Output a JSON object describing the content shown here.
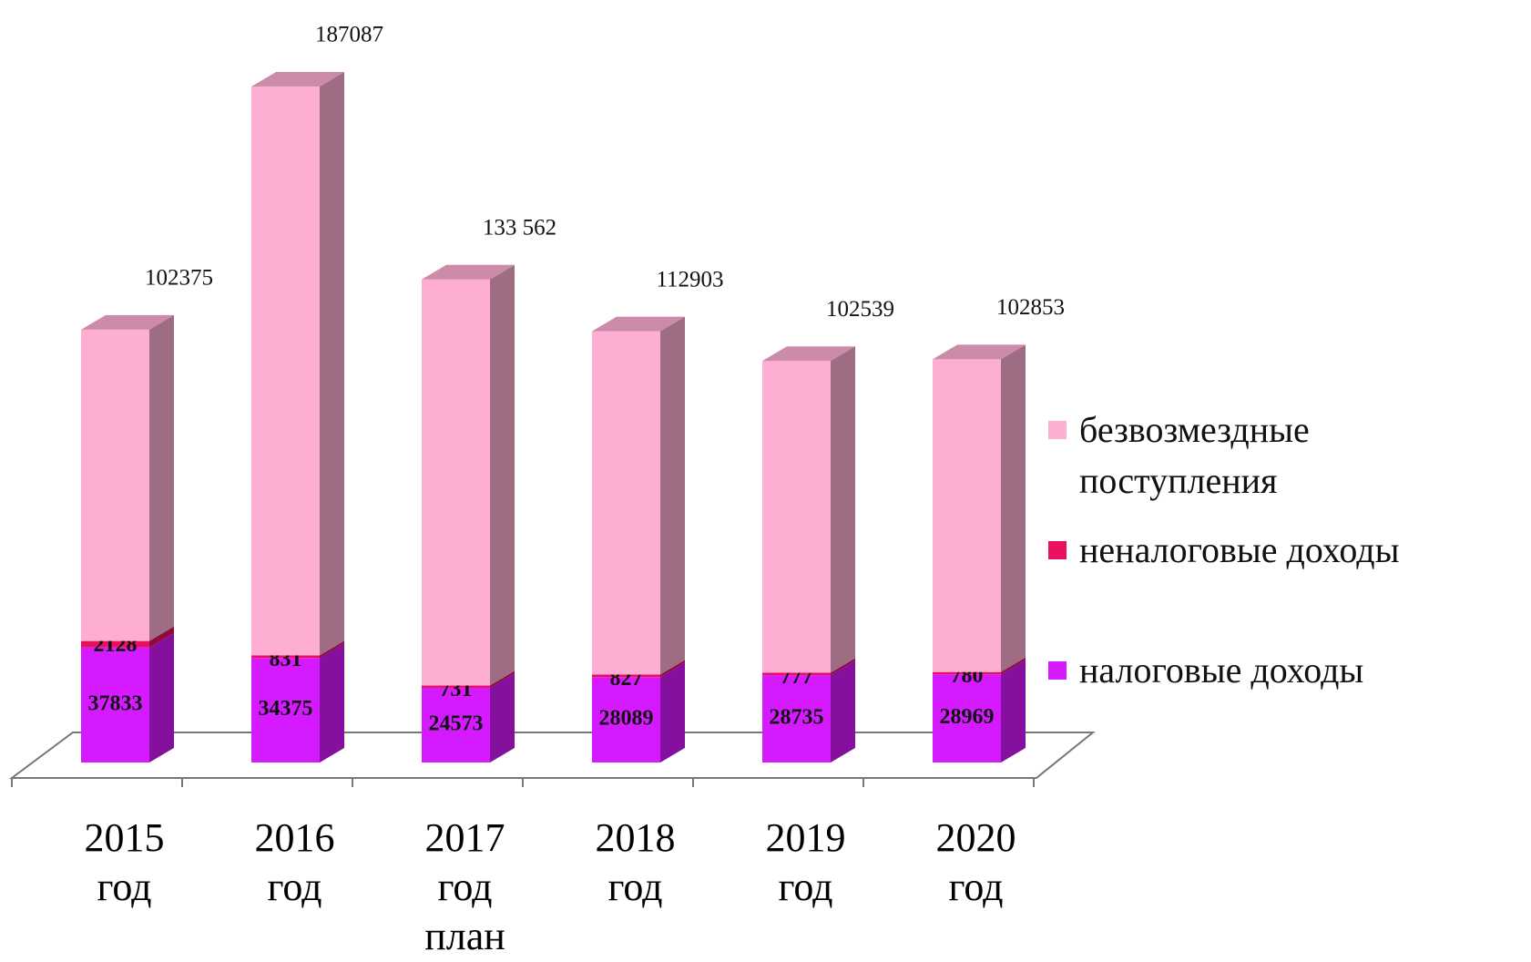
{
  "chart_data": {
    "type": "bar3d_stacked",
    "categories": [
      "2015 год",
      "2016 год",
      "2017 год план",
      "2018 год",
      "2019 год",
      "2020 год"
    ],
    "series": [
      {
        "name": "налоговые доходы",
        "color": "#d61aff",
        "values": [
          37833,
          34375,
          24573,
          28089,
          28735,
          28969
        ]
      },
      {
        "name": "неналоговые доходы",
        "color": "#e8105f",
        "values": [
          2128,
          831,
          731,
          827,
          777,
          780
        ]
      },
      {
        "name": "безвозмездные поступления",
        "color": "#ffaed3",
        "values": [
          102375,
          187087,
          133562,
          112903,
          102539,
          102853
        ],
        "value_labels": [
          "102375",
          "187087",
          "133 562",
          "112903",
          "102539",
          "102853"
        ]
      }
    ],
    "legend": "right"
  }
}
